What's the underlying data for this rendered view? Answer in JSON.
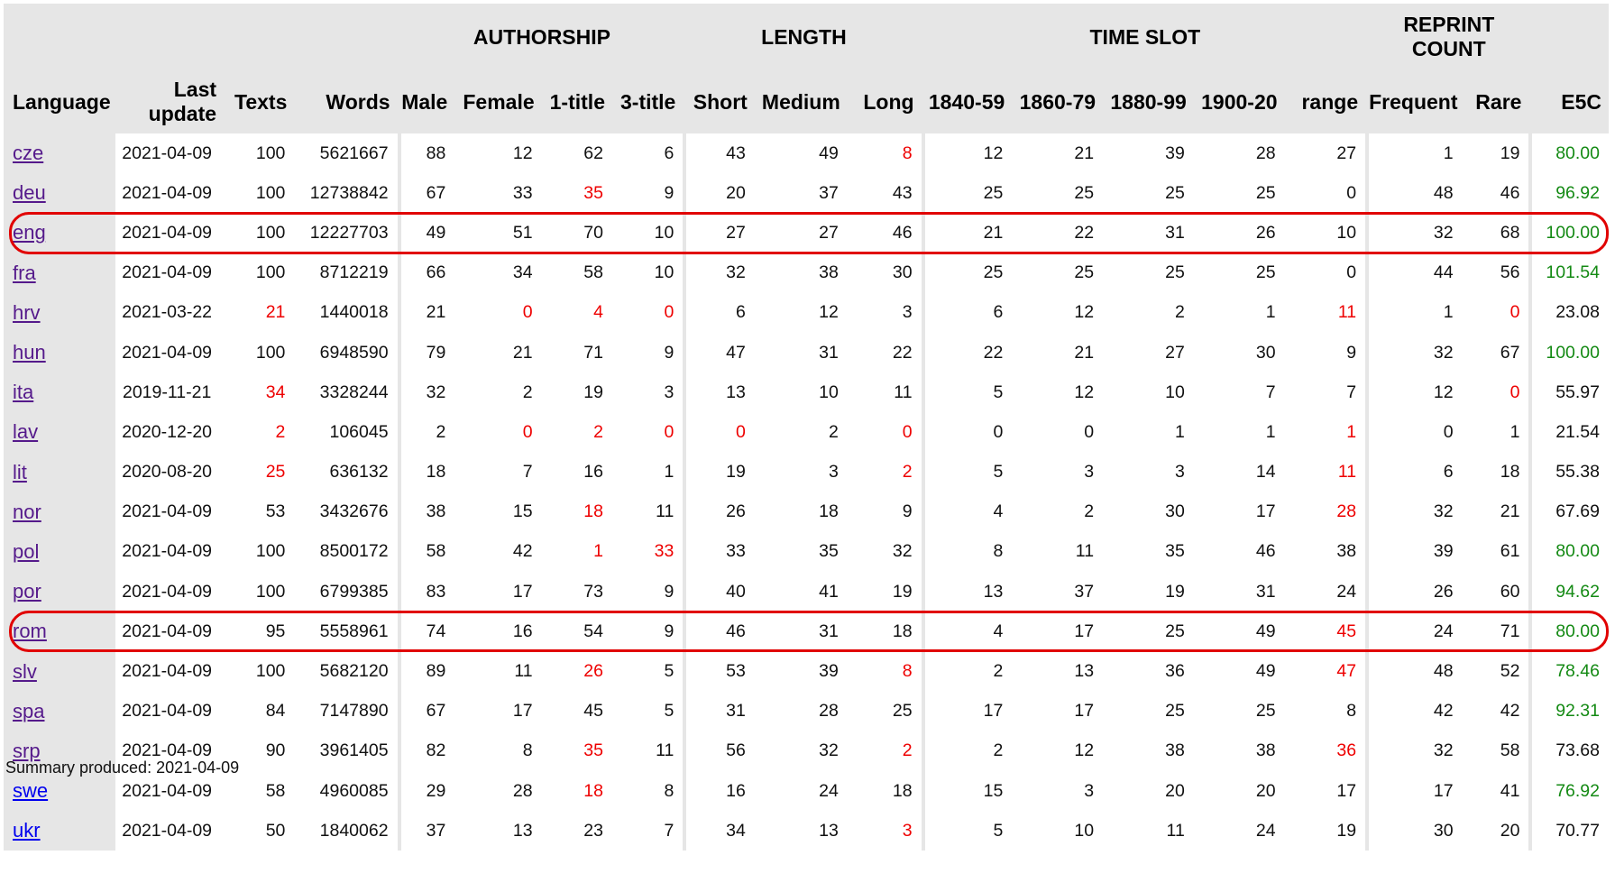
{
  "groups": {
    "authorship": "AUTHORSHIP",
    "length": "LENGTH",
    "time_slot": "TIME SLOT",
    "reprint_count": "REPRINT COUNT"
  },
  "columns": [
    "Language",
    "Last update",
    "Texts",
    "Words",
    "Male",
    "Female",
    "1-title",
    "3-title",
    "Short",
    "Medium",
    "Long",
    "1840-59",
    "1860-79",
    "1880-99",
    "1900-20",
    "range",
    "Frequent",
    "Rare",
    "E5C"
  ],
  "rows": [
    {
      "lang": "cze",
      "update": "2021-04-09",
      "texts": "100",
      "words": "5621667",
      "male": "88",
      "female": "12",
      "t1": "62",
      "t3": "6",
      "short": "43",
      "medium": "49",
      "long": "8",
      "s1": "12",
      "s2": "21",
      "s3": "39",
      "s4": "28",
      "range": "27",
      "freq": "1",
      "rare": "19",
      "e5c": "80.00",
      "red": [
        "long"
      ],
      "e5c_color": "green"
    },
    {
      "lang": "deu",
      "update": "2021-04-09",
      "texts": "100",
      "words": "12738842",
      "male": "67",
      "female": "33",
      "t1": "35",
      "t3": "9",
      "short": "20",
      "medium": "37",
      "long": "43",
      "s1": "25",
      "s2": "25",
      "s3": "25",
      "s4": "25",
      "range": "0",
      "freq": "48",
      "rare": "46",
      "e5c": "96.92",
      "red": [
        "t1"
      ],
      "e5c_color": "green"
    },
    {
      "lang": "eng",
      "update": "2021-04-09",
      "texts": "100",
      "words": "12227703",
      "male": "49",
      "female": "51",
      "t1": "70",
      "t3": "10",
      "short": "27",
      "medium": "27",
      "long": "46",
      "s1": "21",
      "s2": "22",
      "s3": "31",
      "s4": "26",
      "range": "10",
      "freq": "32",
      "rare": "68",
      "e5c": "100.00",
      "red": [],
      "e5c_color": "green"
    },
    {
      "lang": "fra",
      "update": "2021-04-09",
      "texts": "100",
      "words": "8712219",
      "male": "66",
      "female": "34",
      "t1": "58",
      "t3": "10",
      "short": "32",
      "medium": "38",
      "long": "30",
      "s1": "25",
      "s2": "25",
      "s3": "25",
      "s4": "25",
      "range": "0",
      "freq": "44",
      "rare": "56",
      "e5c": "101.54",
      "red": [],
      "e5c_color": "green"
    },
    {
      "lang": "hrv",
      "update": "2021-03-22",
      "texts": "21",
      "words": "1440018",
      "male": "21",
      "female": "0",
      "t1": "4",
      "t3": "0",
      "short": "6",
      "medium": "12",
      "long": "3",
      "s1": "6",
      "s2": "12",
      "s3": "2",
      "s4": "1",
      "range": "11",
      "freq": "1",
      "rare": "0",
      "e5c": "23.08",
      "red": [
        "texts",
        "female",
        "t1",
        "t3",
        "range",
        "rare"
      ],
      "e5c_color": ""
    },
    {
      "lang": "hun",
      "update": "2021-04-09",
      "texts": "100",
      "words": "6948590",
      "male": "79",
      "female": "21",
      "t1": "71",
      "t3": "9",
      "short": "47",
      "medium": "31",
      "long": "22",
      "s1": "22",
      "s2": "21",
      "s3": "27",
      "s4": "30",
      "range": "9",
      "freq": "32",
      "rare": "67",
      "e5c": "100.00",
      "red": [],
      "e5c_color": "green"
    },
    {
      "lang": "ita",
      "update": "2019-11-21",
      "texts": "34",
      "words": "3328244",
      "male": "32",
      "female": "2",
      "t1": "19",
      "t3": "3",
      "short": "13",
      "medium": "10",
      "long": "11",
      "s1": "5",
      "s2": "12",
      "s3": "10",
      "s4": "7",
      "range": "7",
      "freq": "12",
      "rare": "0",
      "e5c": "55.97",
      "red": [
        "texts",
        "rare"
      ],
      "e5c_color": ""
    },
    {
      "lang": "lav",
      "update": "2020-12-20",
      "texts": "2",
      "words": "106045",
      "male": "2",
      "female": "0",
      "t1": "2",
      "t3": "0",
      "short": "0",
      "medium": "2",
      "long": "0",
      "s1": "0",
      "s2": "0",
      "s3": "1",
      "s4": "1",
      "range": "1",
      "freq": "0",
      "rare": "1",
      "e5c": "21.54",
      "red": [
        "texts",
        "female",
        "t1",
        "t3",
        "short",
        "long",
        "range"
      ],
      "e5c_color": ""
    },
    {
      "lang": "lit",
      "update": "2020-08-20",
      "texts": "25",
      "words": "636132",
      "male": "18",
      "female": "7",
      "t1": "16",
      "t3": "1",
      "short": "19",
      "medium": "3",
      "long": "2",
      "s1": "5",
      "s2": "3",
      "s3": "3",
      "s4": "14",
      "range": "11",
      "freq": "6",
      "rare": "18",
      "e5c": "55.38",
      "red": [
        "texts",
        "long",
        "range"
      ],
      "e5c_color": ""
    },
    {
      "lang": "nor",
      "update": "2021-04-09",
      "texts": "53",
      "words": "3432676",
      "male": "38",
      "female": "15",
      "t1": "18",
      "t3": "11",
      "short": "26",
      "medium": "18",
      "long": "9",
      "s1": "4",
      "s2": "2",
      "s3": "30",
      "s4": "17",
      "range": "28",
      "freq": "32",
      "rare": "21",
      "e5c": "67.69",
      "red": [
        "t1",
        "range"
      ],
      "e5c_color": ""
    },
    {
      "lang": "pol",
      "update": "2021-04-09",
      "texts": "100",
      "words": "8500172",
      "male": "58",
      "female": "42",
      "t1": "1",
      "t3": "33",
      "short": "33",
      "medium": "35",
      "long": "32",
      "s1": "8",
      "s2": "11",
      "s3": "35",
      "s4": "46",
      "range": "38",
      "freq": "39",
      "rare": "61",
      "e5c": "80.00",
      "red": [
        "t1",
        "t3"
      ],
      "e5c_color": "green"
    },
    {
      "lang": "por",
      "update": "2021-04-09",
      "texts": "100",
      "words": "6799385",
      "male": "83",
      "female": "17",
      "t1": "73",
      "t3": "9",
      "short": "40",
      "medium": "41",
      "long": "19",
      "s1": "13",
      "s2": "37",
      "s3": "19",
      "s4": "31",
      "range": "24",
      "freq": "26",
      "rare": "60",
      "e5c": "94.62",
      "red": [],
      "e5c_color": "green"
    },
    {
      "lang": "rom",
      "update": "2021-04-09",
      "texts": "95",
      "words": "5558961",
      "male": "74",
      "female": "16",
      "t1": "54",
      "t3": "9",
      "short": "46",
      "medium": "31",
      "long": "18",
      "s1": "4",
      "s2": "17",
      "s3": "25",
      "s4": "49",
      "range": "45",
      "freq": "24",
      "rare": "71",
      "e5c": "80.00",
      "red": [
        "range"
      ],
      "e5c_color": "green"
    },
    {
      "lang": "slv",
      "update": "2021-04-09",
      "texts": "100",
      "words": "5682120",
      "male": "89",
      "female": "11",
      "t1": "26",
      "t3": "5",
      "short": "53",
      "medium": "39",
      "long": "8",
      "s1": "2",
      "s2": "13",
      "s3": "36",
      "s4": "49",
      "range": "47",
      "freq": "48",
      "rare": "52",
      "e5c": "78.46",
      "red": [
        "t1",
        "long",
        "range"
      ],
      "e5c_color": "green"
    },
    {
      "lang": "spa",
      "update": "2021-04-09",
      "texts": "84",
      "words": "7147890",
      "male": "67",
      "female": "17",
      "t1": "45",
      "t3": "5",
      "short": "31",
      "medium": "28",
      "long": "25",
      "s1": "17",
      "s2": "17",
      "s3": "25",
      "s4": "25",
      "range": "8",
      "freq": "42",
      "rare": "42",
      "e5c": "92.31",
      "red": [],
      "e5c_color": "green"
    },
    {
      "lang": "srp",
      "update": "2021-04-09",
      "texts": "90",
      "words": "3961405",
      "male": "82",
      "female": "8",
      "t1": "35",
      "t3": "11",
      "short": "56",
      "medium": "32",
      "long": "2",
      "s1": "2",
      "s2": "12",
      "s3": "38",
      "s4": "38",
      "range": "36",
      "freq": "32",
      "rare": "58",
      "e5c": "73.68",
      "red": [
        "t1",
        "long",
        "range"
      ],
      "e5c_color": ""
    },
    {
      "lang": "swe",
      "update": "2021-04-09",
      "texts": "58",
      "words": "4960085",
      "male": "29",
      "female": "28",
      "t1": "18",
      "t3": "8",
      "short": "16",
      "medium": "24",
      "long": "18",
      "s1": "15",
      "s2": "3",
      "s3": "20",
      "s4": "20",
      "range": "17",
      "freq": "17",
      "rare": "41",
      "e5c": "76.92",
      "red": [
        "t1"
      ],
      "e5c_color": "green"
    },
    {
      "lang": "ukr",
      "update": "2021-04-09",
      "texts": "50",
      "words": "1840062",
      "male": "37",
      "female": "13",
      "t1": "23",
      "t3": "7",
      "short": "34",
      "medium": "13",
      "long": "3",
      "s1": "5",
      "s2": "10",
      "s3": "11",
      "s4": "24",
      "range": "19",
      "freq": "30",
      "rare": "20",
      "e5c": "70.77",
      "red": [
        "long"
      ],
      "e5c_color": ""
    }
  ],
  "unvisited_links": [
    "swe",
    "ukr"
  ],
  "highlighted_rows": [
    "eng",
    "rom"
  ],
  "colors": {
    "header_bg": "#e6e6e6",
    "red": "#ee0000",
    "green": "#148a14",
    "link": "#551a8b",
    "link_unvisited": "#0000ee",
    "highlight_ring": "#e10000"
  },
  "summary": "Summary produced: 2021-04-09"
}
